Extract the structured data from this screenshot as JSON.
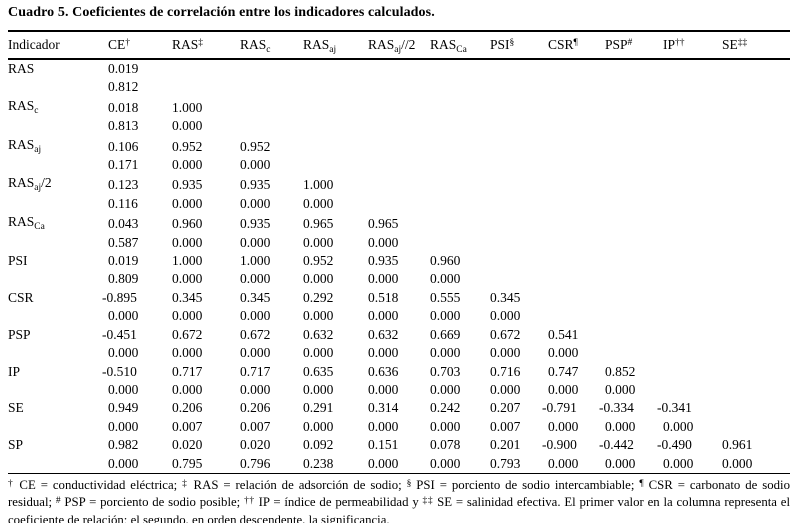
{
  "title": "Cuadro 5. Coeficientes de correlación entre los indicadores calculados.",
  "colors": {
    "text": "#000000",
    "background": "#ffffff",
    "rule": "#000000"
  },
  "table": {
    "header": [
      {
        "base": "Indicador"
      },
      {
        "base": "CE",
        "sup": "†"
      },
      {
        "base": "RAS",
        "sup": "‡"
      },
      {
        "base": "RAS",
        "sub": "c"
      },
      {
        "base": "RAS",
        "sub": "aj"
      },
      {
        "base": "RAS",
        "sub": "aj",
        "suffix": "//2"
      },
      {
        "base": "RAS",
        "sub": "Ca"
      },
      {
        "base": "PSI",
        "sup": "§"
      },
      {
        "base": "CSR",
        "sup": "¶"
      },
      {
        "base": "PSP",
        "sup": "#"
      },
      {
        "base": "IP",
        "sup": "††"
      },
      {
        "base": "SE",
        "sup": "‡‡"
      }
    ],
    "rows": [
      {
        "base": "RAS",
        "coef": [
          "0.019"
        ],
        "sig": [
          "0.812"
        ]
      },
      {
        "base": "RAS",
        "sub": "c",
        "coef": [
          "0.018",
          "1.000"
        ],
        "sig": [
          "0.813",
          "0.000"
        ]
      },
      {
        "base": "RAS",
        "sub": "aj",
        "coef": [
          "0.106",
          "0.952",
          "0.952"
        ],
        "sig": [
          "0.171",
          "0.000",
          "0.000"
        ]
      },
      {
        "base": "RAS",
        "sub": "aj",
        "suffix": "/2",
        "coef": [
          "0.123",
          "0.935",
          "0.935",
          "1.000"
        ],
        "sig": [
          "0.116",
          "0.000",
          "0.000",
          "0.000"
        ]
      },
      {
        "base": "RAS",
        "sub": "Ca",
        "coef": [
          "0.043",
          "0.960",
          "0.935",
          "0.965",
          "0.965"
        ],
        "sig": [
          "0.587",
          "0.000",
          "0.000",
          "0.000",
          "0.000"
        ]
      },
      {
        "base": "PSI",
        "coef": [
          "0.019",
          "1.000",
          "1.000",
          "0.952",
          "0.935",
          "0.960"
        ],
        "sig": [
          "0.809",
          "0.000",
          "0.000",
          "0.000",
          "0.000",
          "0.000"
        ]
      },
      {
        "base": "CSR",
        "coef": [
          "-0.895",
          "0.345",
          "0.345",
          "0.292",
          "0.518",
          "0.555",
          "0.345"
        ],
        "sig": [
          "0.000",
          "0.000",
          "0.000",
          "0.000",
          "0.000",
          "0.000",
          "0.000"
        ]
      },
      {
        "base": "PSP",
        "coef": [
          "-0.451",
          "0.672",
          "0.672",
          "0.632",
          "0.632",
          "0.669",
          "0.672",
          "0.541"
        ],
        "sig": [
          "0.000",
          "0.000",
          "0.000",
          "0.000",
          "0.000",
          "0.000",
          "0.000",
          "0.000"
        ]
      },
      {
        "base": "IP",
        "coef": [
          "-0.510",
          "0.717",
          "0.717",
          "0.635",
          "0.636",
          "0.703",
          "0.716",
          "0.747",
          "0.852"
        ],
        "sig": [
          "0.000",
          "0.000",
          "0.000",
          "0.000",
          "0.000",
          "0.000",
          "0.000",
          "0.000",
          "0.000"
        ]
      },
      {
        "base": "SE",
        "coef": [
          "0.949",
          "0.206",
          "0.206",
          "0.291",
          "0.314",
          "0.242",
          "0.207",
          "-0.791",
          "-0.334",
          "-0.341"
        ],
        "sig": [
          "0.000",
          "0.007",
          "0.007",
          "0.000",
          "0.000",
          "0.000",
          "0.007",
          "0.000",
          "0.000",
          "0.000"
        ]
      },
      {
        "base": "SP",
        "coef": [
          "0.982",
          "0.020",
          "0.020",
          "0.092",
          "0.151",
          "0.078",
          "0.201",
          "-0.900",
          "-0.442",
          "-0.490",
          "0.961"
        ],
        "sig": [
          "0.000",
          "0.795",
          "0.796",
          "0.238",
          "0.000",
          "0.000",
          "0.793",
          "0.000",
          "0.000",
          "0.000",
          "0.000"
        ]
      }
    ]
  },
  "footnote_segments": [
    {
      "sup": "†"
    },
    {
      "text": " CE = conductividad eléctrica; "
    },
    {
      "sup": "‡"
    },
    {
      "text": " RAS = relación de adsorción de sodio;  "
    },
    {
      "sup": "§"
    },
    {
      "text": " PSI = porciento de sodio intercambiable; "
    },
    {
      "sup": "¶"
    },
    {
      "text": " CSR = carbonato de sodio residual; "
    },
    {
      "sup": "#"
    },
    {
      "text": " PSP = porciento de sodio posible; "
    },
    {
      "sup": "††"
    },
    {
      "text": " IP = índice de permeabilidad y "
    },
    {
      "sup": "‡‡"
    },
    {
      "text": " SE = salinidad efectiva. El primer valor en la columna representa el coeficiente de relación; el segundo, en orden descendente, la significancia."
    }
  ]
}
